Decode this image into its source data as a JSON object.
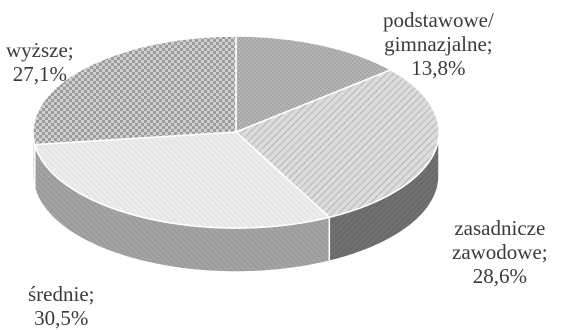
{
  "chart_data": {
    "type": "pie",
    "style": "3d",
    "slices": [
      {
        "key": "podstawowe",
        "label_lines": [
          "podstawowe/",
          "gimnazjalne;",
          "13,8%"
        ],
        "value": 13.8,
        "top_color": "#aaaaaa",
        "side_color": "#7a7a7a",
        "pattern": "dots"
      },
      {
        "key": "zasadnicze",
        "label_lines": [
          "zasadnicze",
          "zawodowe;",
          "28,6%"
        ],
        "value": 28.6,
        "top_color": "#d5d5d5",
        "side_color": "#6e6e6e",
        "pattern": "hatch"
      },
      {
        "key": "srednie",
        "label_lines": [
          "średnie;",
          "30,5%"
        ],
        "value": 30.5,
        "top_color": "#e8e8e8",
        "side_color": "#9a9a9a",
        "pattern": "light-hatch"
      },
      {
        "key": "wyzsze",
        "label_lines": [
          "wyższe;",
          "27,1%"
        ],
        "value": 27.1,
        "top_color": "#c4c4c4",
        "side_color": "#8a8a8a",
        "pattern": "checker"
      }
    ],
    "start_angle_deg": -90,
    "direction": "clockwise",
    "legend": "none"
  }
}
